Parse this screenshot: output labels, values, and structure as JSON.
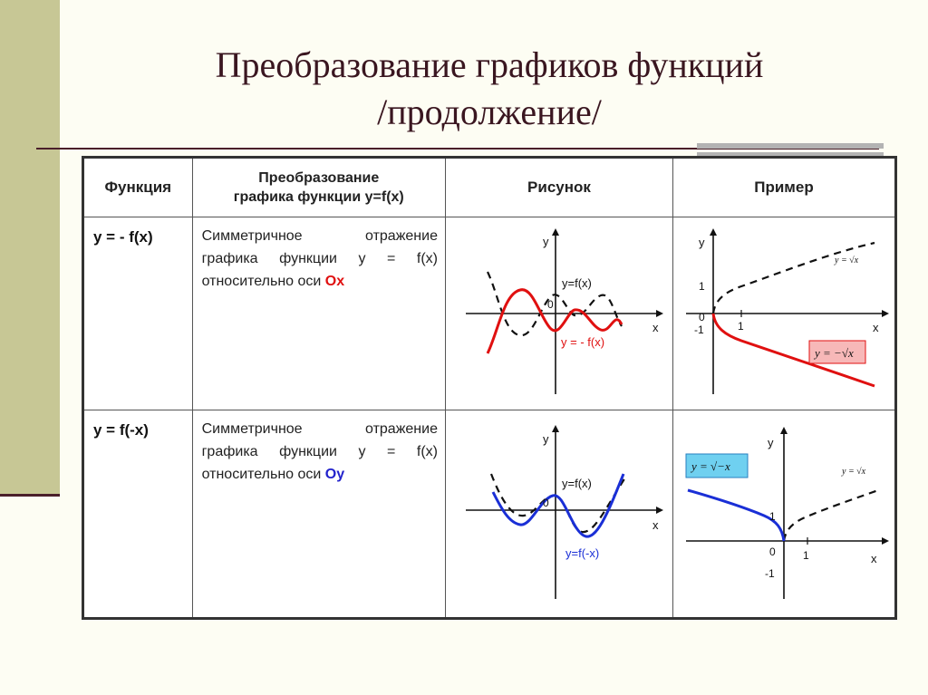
{
  "title_line1": "Преобразование графиков функций",
  "title_line2": "/продолжение/",
  "table": {
    "headers": {
      "function": "Функция",
      "transform_line1": "Преобразование",
      "transform_line2": "графика функции y=f(x)",
      "picture": "Рисунок",
      "example": "Пример"
    },
    "rows": [
      {
        "function": "y = - f(x)",
        "desc_text": "Симметричное отражение графика функции y = f(x) относительно оси ",
        "desc_axis": "Ох",
        "graph": {
          "y_label": "y",
          "x_label": "x",
          "zero": "0",
          "label_original": "y=f(x)",
          "label_transformed": "y = - f(x)"
        },
        "example": {
          "y_label": "y",
          "x_label": "x",
          "zero": "0",
          "one_y": "1",
          "one_x": "1",
          "minus_one": "-1",
          "formula_original": "y = √x",
          "formula_transformed": "y = −√x"
        }
      },
      {
        "function": "y = f(-x)",
        "desc_text": "Симметричное отражение графика функции y = f(x) относительно оси ",
        "desc_axis": "Оу",
        "graph": {
          "y_label": "y",
          "x_label": "x",
          "zero": "0",
          "label_original": "y=f(x)",
          "label_transformed": "y=f(-x)"
        },
        "example": {
          "y_label": "y",
          "x_label": "x",
          "zero": "0",
          "one_y": "1",
          "one_x": "1",
          "minus_one": "-1",
          "formula_original": "y = √x",
          "formula_transformed": "y = √−x"
        }
      }
    ]
  },
  "colors": {
    "red_curve": "#e01010",
    "blue_curve": "#1a2fd6",
    "accent_bar": "#c7c795",
    "dark_rule": "#4a1f2a"
  }
}
